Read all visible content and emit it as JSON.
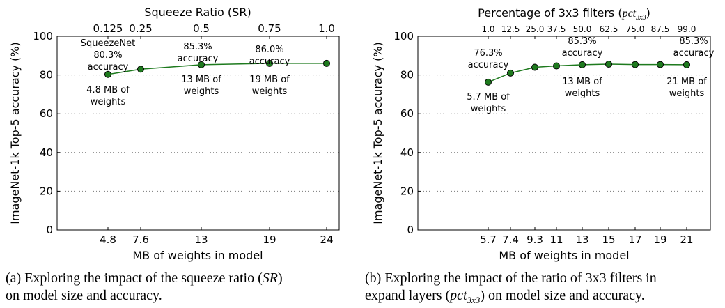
{
  "chart_data": [
    {
      "type": "line",
      "top_title": "Squeeze Ratio (SR)",
      "xlabel": "MB of weights in model",
      "ylabel": "ImageNet-1k Top-5 accuracy (%)",
      "ylim": [
        0,
        100
      ],
      "yticks": [
        "0",
        "20",
        "40",
        "60",
        "80",
        "100"
      ],
      "grid": true,
      "x_categories": [
        "4.8",
        "7.6",
        "13",
        "19",
        "24"
      ],
      "top_categories": [
        "0.125",
        "0.25",
        "0.5",
        "0.75",
        "1.0"
      ],
      "values": [
        80.3,
        83.0,
        85.3,
        86.0,
        86.0
      ],
      "annotations": [
        {
          "lines": [
            "SqueezeNet",
            "80.3%",
            "accuracy"
          ]
        },
        {
          "lines": [
            "4.8 MB of",
            "weights"
          ]
        },
        {
          "lines": [
            "85.3%",
            "accuracy"
          ]
        },
        {
          "lines": [
            "13 MB of",
            "weights"
          ]
        },
        {
          "lines": [
            "86.0%",
            "accuracy"
          ]
        },
        {
          "lines": [
            "19 MB of",
            "weights"
          ]
        }
      ],
      "caption": {
        "text1": "(a) Exploring the impact of the squeeze ratio (",
        "sym": "SR",
        "text2": ")",
        "line2": "on model size and accuracy."
      }
    },
    {
      "type": "line",
      "top_title": "Percentage of 3x3 filters (",
      "top_title_sym": "pct",
      "top_title_sub": "3x3",
      "top_title_end": ")",
      "xlabel": "MB of weights in model",
      "ylabel": "ImageNet-1k Top-5 accuracy (%)",
      "ylim": [
        0,
        100
      ],
      "yticks": [
        "0",
        "20",
        "40",
        "60",
        "80",
        "100"
      ],
      "grid": true,
      "x_categories": [
        "5.7",
        "7.4",
        "9.3",
        "11",
        "13",
        "15",
        "17",
        "19",
        "21"
      ],
      "top_categories": [
        "1.0",
        "12.5",
        "25.0",
        "37.5",
        "50.0",
        "62.5",
        "75.0",
        "87.5",
        "99.0"
      ],
      "values": [
        76.3,
        81.0,
        84.0,
        84.7,
        85.3,
        85.6,
        85.4,
        85.4,
        85.3
      ],
      "annotations": [
        {
          "lines": [
            "76.3%",
            "accuracy"
          ]
        },
        {
          "lines": [
            "5.7 MB of",
            "weights"
          ]
        },
        {
          "lines": [
            "85.3%",
            "accuracy"
          ]
        },
        {
          "lines": [
            "13 MB of",
            "weights"
          ]
        },
        {
          "lines": [
            "85.3%",
            "accuracy"
          ]
        },
        {
          "lines": [
            "21 MB of",
            "weights"
          ]
        }
      ],
      "caption": {
        "text1": "(b) Exploring the impact of the ratio of 3x3 filters in",
        "line2a": "expand layers (",
        "sym": "pct",
        "sub": "3x3",
        "line2b": ") on model size and accuracy."
      }
    }
  ]
}
